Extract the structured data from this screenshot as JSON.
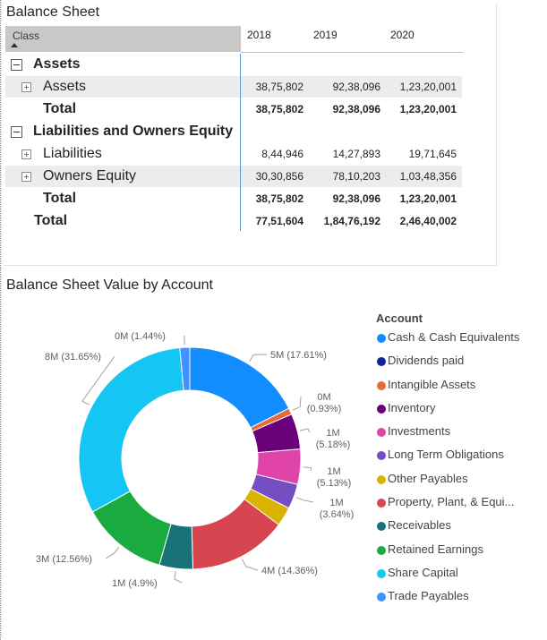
{
  "balance_sheet": {
    "title": "Balance Sheet",
    "class_header": "Class",
    "years": [
      "2018",
      "2019",
      "2020"
    ],
    "rows": [
      {
        "label": "Assets",
        "values": [
          "",
          "",
          ""
        ]
      },
      {
        "label": "Assets",
        "values": [
          "38,75,802",
          "92,38,096",
          "1,23,20,001"
        ]
      },
      {
        "label": "Total",
        "values": [
          "38,75,802",
          "92,38,096",
          "1,23,20,001"
        ]
      },
      {
        "label": "Liabilities and Owners Equity",
        "values": [
          "",
          "",
          ""
        ]
      },
      {
        "label": "Liabilities",
        "values": [
          "8,44,946",
          "14,27,893",
          "19,71,645"
        ]
      },
      {
        "label": "Owners Equity",
        "values": [
          "30,30,856",
          "78,10,203",
          "1,03,48,356"
        ]
      },
      {
        "label": "Total",
        "values": [
          "38,75,802",
          "92,38,096",
          "1,23,20,001"
        ]
      },
      {
        "label": "Total",
        "values": [
          "77,51,604",
          "1,84,76,192",
          "2,46,40,002"
        ]
      }
    ]
  },
  "donut": {
    "title": "Balance Sheet Value by Account",
    "legend_title": "Account",
    "accounts": [
      {
        "name": "Cash & Cash Equivalents",
        "label": "5M (17.61%)",
        "pct": 17.61,
        "color": "#118DFF"
      },
      {
        "name": "Dividends paid",
        "label": "",
        "pct": 0,
        "color": "#12239E"
      },
      {
        "name": "Intangible Assets",
        "label": "0M (0.93%)",
        "pct": 0.93,
        "color": "#E66C37"
      },
      {
        "name": "Inventory",
        "label": "1M (5.18%)",
        "pct": 5.18,
        "color": "#6B007B"
      },
      {
        "name": "Investments",
        "label": "1M (5.13%)",
        "pct": 5.13,
        "color": "#E044A7"
      },
      {
        "name": "Long Term Obligations",
        "label": "1M (3.64%)",
        "pct": 3.64,
        "color": "#744EC2"
      },
      {
        "name": "Other Payables",
        "label": "",
        "pct": 2.8,
        "color": "#D9B300"
      },
      {
        "name": "Property, Plant, & Equi...",
        "label": "4M (14.36%)",
        "pct": 14.36,
        "color": "#D64550"
      },
      {
        "name": "Receivables",
        "label": "1M (4.9%)",
        "pct": 4.9,
        "color": "#197278"
      },
      {
        "name": "Retained Earnings",
        "label": "3M (12.56%)",
        "pct": 12.56,
        "color": "#1AAB40"
      },
      {
        "name": "Share Capital",
        "label": "8M (31.65%)",
        "pct": 31.65,
        "color": "#15C6F4"
      },
      {
        "name": "Trade Payables",
        "label": "0M (1.44%)",
        "pct": 1.44,
        "color": "#4092FF"
      }
    ]
  }
}
